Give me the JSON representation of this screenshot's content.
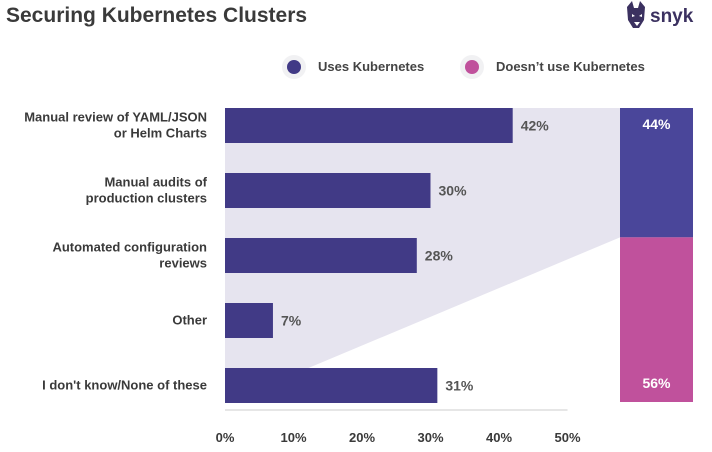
{
  "brand": {
    "name": "snyk",
    "logo_icon": "doberman-head-icon"
  },
  "colors": {
    "uses": "#413a86",
    "not_uses": "#c0519c",
    "stack_top": "#4a469a",
    "funnel": "#e6e4ef",
    "axis": "#cccccc"
  },
  "chart_data": [
    {
      "type": "bar",
      "orientation": "horizontal",
      "title": "Securing Kubernetes Clusters",
      "categories": [
        [
          "Manual review of YAML/JSON",
          "or Helm Charts"
        ],
        [
          "Manual audits of",
          "production clusters"
        ],
        [
          "Automated configuration",
          "reviews"
        ],
        [
          "Other"
        ],
        [
          "I don't know/None of these"
        ]
      ],
      "series": [
        {
          "name": "Uses Kubernetes",
          "values": [
            42,
            30,
            28,
            7,
            31
          ],
          "labels": [
            "42%",
            "30%",
            "28%",
            "7%",
            "31%"
          ]
        }
      ],
      "xlim": [
        0,
        50
      ],
      "xticks": [
        "0%",
        "10%",
        "20%",
        "30%",
        "40%",
        "50%"
      ],
      "grid": false,
      "legend": "top-right"
    },
    {
      "type": "bar",
      "orientation": "vertical-stacked",
      "series": [
        {
          "name": "Uses Kubernetes",
          "value": 44,
          "label": "44%"
        },
        {
          "name": "Doesn’t use Kubernetes",
          "value": 56,
          "label": "56%"
        }
      ]
    }
  ]
}
